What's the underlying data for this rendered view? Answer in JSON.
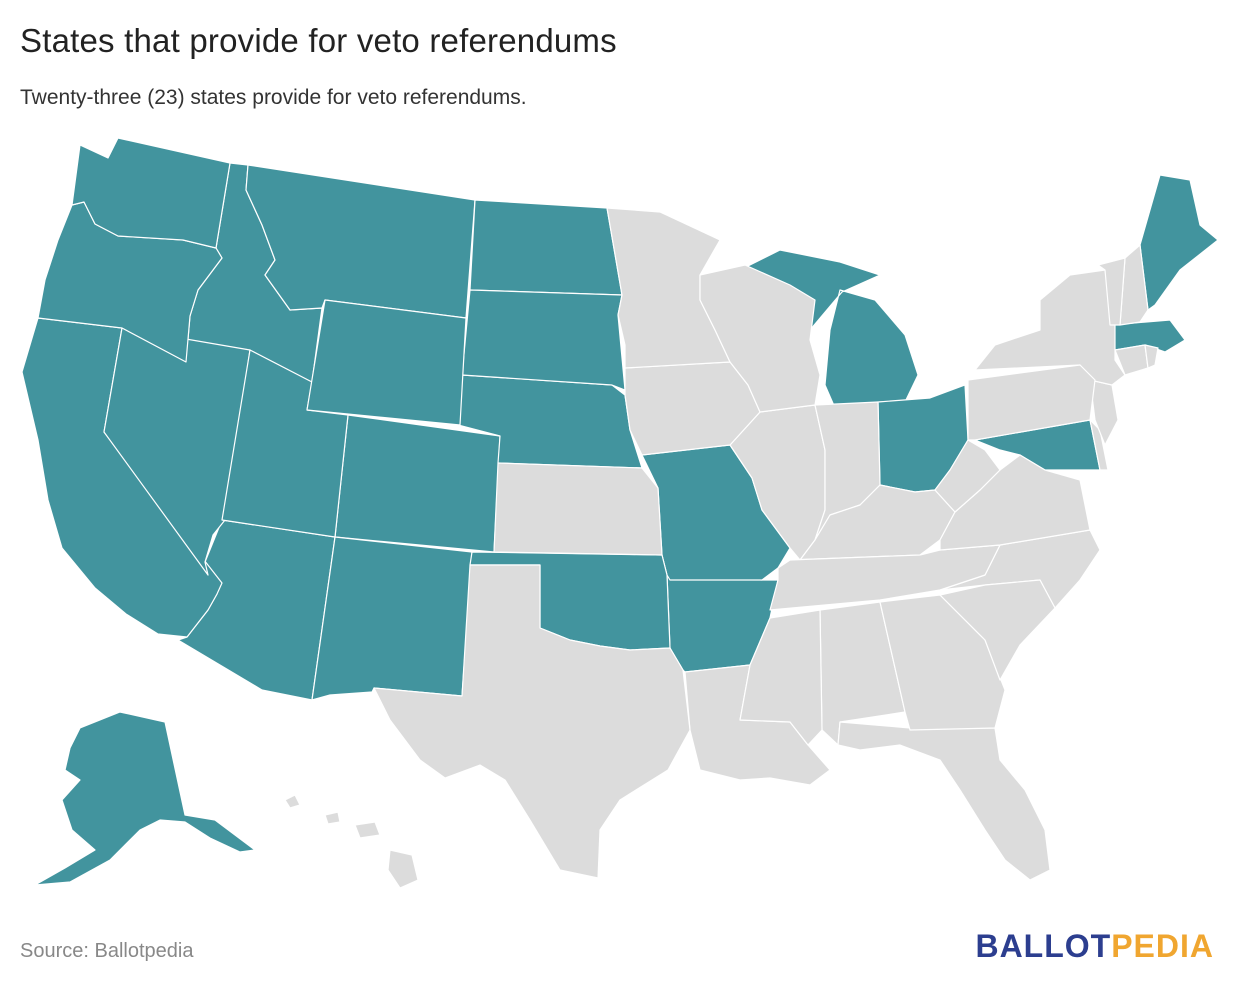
{
  "title": "States that provide for veto referendums",
  "subtitle": "Twenty-three (23) states provide for veto referendums.",
  "source": "Source: Ballotpedia",
  "logo": {
    "part1": "BALLOT",
    "part2": "PEDIA"
  },
  "colors": {
    "yes": "#42949e",
    "no": "#dcdcdc",
    "border": "#ffffff",
    "logo_blue": "#2c3e8f",
    "logo_gold": "#f0a630"
  },
  "map": {
    "states_with_veto_referendum": [
      "AK",
      "AZ",
      "AR",
      "CA",
      "CO",
      "ID",
      "ME",
      "MD",
      "MA",
      "MI",
      "MO",
      "MT",
      "NE",
      "NV",
      "NM",
      "ND",
      "OH",
      "OK",
      "OR",
      "SD",
      "UT",
      "WA",
      "WY"
    ],
    "states_without": [
      "AL",
      "CT",
      "DE",
      "FL",
      "GA",
      "HI",
      "IL",
      "IN",
      "IA",
      "KS",
      "KY",
      "LA",
      "MN",
      "MS",
      "NH",
      "NJ",
      "NY",
      "NC",
      "PA",
      "RI",
      "SC",
      "TN",
      "TX",
      "VT",
      "VA",
      "WV",
      "WI"
    ]
  }
}
